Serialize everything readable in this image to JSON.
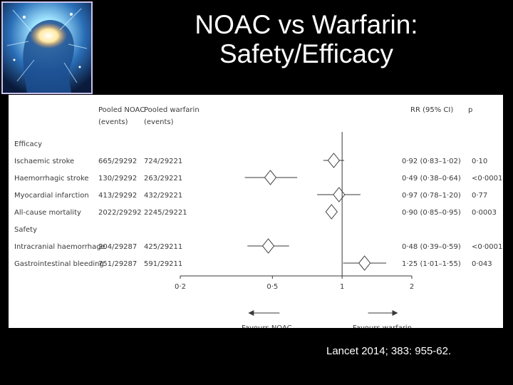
{
  "slide": {
    "title_line1": "NOAC vs Warfarin:",
    "title_line2": "Safety/Efficacy",
    "citation": "Lancet 2014; 383: 955-62.",
    "logo_icon": "glowing-head-brain-image-icon"
  },
  "colors": {
    "background": "#000000",
    "title": "#ffffff",
    "panel": "#ffffff",
    "ink": "#3a3a3a",
    "logo_border": "#c9c3ee"
  },
  "chart_data": {
    "type": "forest",
    "x_scale": "log",
    "xlim": [
      0.2,
      2
    ],
    "reference_line": 1,
    "x_ticks": [
      "0·2",
      "0·5",
      "1",
      "2"
    ],
    "x_tick_values": [
      0.2,
      0.5,
      1,
      2
    ],
    "direction_labels": {
      "left": "Favours NOAC",
      "right": "Favours warfarin"
    },
    "headers": {
      "noac_line1": "Pooled NOAC",
      "noac_line2": "(events)",
      "warfarin_line1": "Pooled warfarin",
      "warfarin_line2": "(events)",
      "rr": "RR (95% CI)",
      "p": "p"
    },
    "sections": [
      {
        "name": "Efficacy",
        "rows": [
          {
            "label": "Ischaemic stroke",
            "noac": "665/29292",
            "warfarin": "724/29221",
            "rr_text": "0·92 (0·83–1·02)",
            "p": "0·10",
            "rr": 0.92,
            "ci": [
              0.83,
              1.02
            ]
          },
          {
            "label": "Haemorrhagic stroke",
            "noac": "130/29292",
            "warfarin": "263/29221",
            "rr_text": "0·49 (0·38–0·64)",
            "p": "<0·0001",
            "rr": 0.49,
            "ci": [
              0.38,
              0.64
            ]
          },
          {
            "label": "Myocardial infarction",
            "noac": "413/29292",
            "warfarin": "432/29221",
            "rr_text": "0·97 (0·78–1·20)",
            "p": "0·77",
            "rr": 0.97,
            "ci": [
              0.78,
              1.2
            ]
          },
          {
            "label": "All-cause mortality",
            "noac": "2022/29292",
            "warfarin": "2245/29221",
            "rr_text": "0·90 (0·85–0·95)",
            "p": "0·0003",
            "rr": 0.9,
            "ci": [
              0.85,
              0.95
            ]
          }
        ]
      },
      {
        "name": "Safety",
        "rows": [
          {
            "label": "Intracranial haemorrhage",
            "noac": "204/29287",
            "warfarin": "425/29211",
            "rr_text": "0·48 (0·39–0·59)",
            "p": "<0·0001",
            "rr": 0.48,
            "ci": [
              0.39,
              0.59
            ]
          },
          {
            "label": "Gastrointestinal bleeding",
            "noac": "751/29287",
            "warfarin": "591/29211",
            "rr_text": "1·25 (1·01–1·55)",
            "p": "0·043",
            "rr": 1.25,
            "ci": [
              1.01,
              1.55
            ]
          }
        ]
      }
    ]
  }
}
